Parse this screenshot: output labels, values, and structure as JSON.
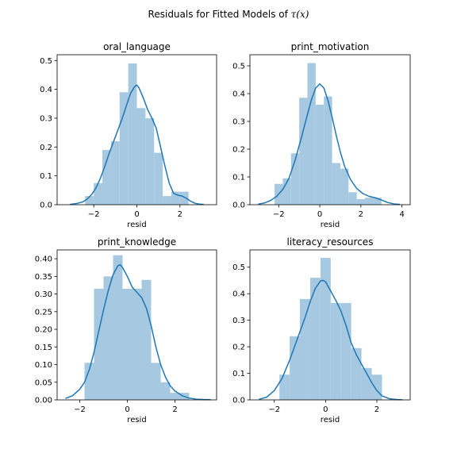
{
  "figure": {
    "title_prefix": "Residuals for Fitted Models of ",
    "title_math": "τ(x)"
  },
  "colors": {
    "bar_fill": "#a6c8e0",
    "kde_line": "#1f77b4",
    "axis": "#000000"
  },
  "chart_data": [
    {
      "type": "bar",
      "title": "oral_language",
      "xlabel": "resid",
      "ylabel": "",
      "xlim": [
        -3.7,
        3.7
      ],
      "ylim": [
        0,
        0.52
      ],
      "xticks": [
        -2,
        0,
        2
      ],
      "yticks": [
        0.0,
        0.1,
        0.2,
        0.3,
        0.4,
        0.5
      ],
      "ytick_labels": [
        "0.0",
        "0.1",
        "0.2",
        "0.3",
        "0.4",
        "0.5"
      ],
      "bin_edges": [
        -2.4,
        -2.0,
        -1.6,
        -1.2,
        -0.8,
        -0.4,
        0.0,
        0.4,
        0.8,
        1.2,
        1.6,
        2.0,
        2.4
      ],
      "values": [
        0.03,
        0.075,
        0.19,
        0.22,
        0.39,
        0.49,
        0.335,
        0.3,
        0.18,
        0.03,
        0.045,
        0.045
      ],
      "kde": {
        "x": [
          -3.1,
          -2.8,
          -2.5,
          -2.3,
          -2.1,
          -1.9,
          -1.7,
          -1.5,
          -1.3,
          -1.1,
          -0.9,
          -0.7,
          -0.5,
          -0.3,
          -0.1,
          0.0,
          0.1,
          0.3,
          0.5,
          0.7,
          0.9,
          1.1,
          1.3,
          1.5,
          1.7,
          1.9,
          2.1,
          2.3,
          2.5,
          2.7,
          2.9,
          3.1
        ],
        "y": [
          0.001,
          0.004,
          0.01,
          0.02,
          0.035,
          0.058,
          0.09,
          0.13,
          0.175,
          0.215,
          0.255,
          0.295,
          0.34,
          0.385,
          0.41,
          0.415,
          0.405,
          0.37,
          0.33,
          0.3,
          0.265,
          0.2,
          0.135,
          0.075,
          0.04,
          0.033,
          0.03,
          0.022,
          0.012,
          0.005,
          0.002,
          0.001
        ]
      }
    },
    {
      "type": "bar",
      "title": "print_motivation",
      "xlabel": "resid",
      "ylabel": "",
      "xlim": [
        -3.4,
        4.4
      ],
      "ylim": [
        0,
        0.54
      ],
      "xticks": [
        -2,
        0,
        2,
        4
      ],
      "yticks": [
        0.0,
        0.1,
        0.2,
        0.3,
        0.4,
        0.5
      ],
      "ytick_labels": [
        "0.0",
        "0.1",
        "0.2",
        "0.3",
        "0.4",
        "0.5"
      ],
      "bin_edges": [
        -2.2,
        -1.8,
        -1.4,
        -1.0,
        -0.6,
        -0.2,
        0.2,
        0.6,
        1.0,
        1.4,
        1.8,
        2.2,
        2.6,
        3.0
      ],
      "values": [
        0.075,
        0.095,
        0.185,
        0.385,
        0.51,
        0.36,
        0.39,
        0.15,
        0.13,
        0.045,
        0.02,
        0.025,
        0.025
      ],
      "kde": {
        "x": [
          -3.0,
          -2.7,
          -2.4,
          -2.1,
          -1.8,
          -1.5,
          -1.2,
          -0.9,
          -0.6,
          -0.4,
          -0.2,
          0.0,
          0.2,
          0.4,
          0.6,
          0.8,
          1.0,
          1.2,
          1.5,
          1.8,
          2.1,
          2.4,
          2.7,
          3.0,
          3.3,
          3.6,
          3.9
        ],
        "y": [
          0.002,
          0.006,
          0.015,
          0.03,
          0.055,
          0.095,
          0.16,
          0.24,
          0.325,
          0.38,
          0.42,
          0.435,
          0.42,
          0.375,
          0.315,
          0.25,
          0.19,
          0.14,
          0.09,
          0.058,
          0.04,
          0.03,
          0.025,
          0.017,
          0.008,
          0.003,
          0.001
        ]
      }
    },
    {
      "type": "bar",
      "title": "print_knowledge",
      "xlabel": "resid",
      "ylabel": "",
      "xlim": [
        -2.95,
        3.75
      ],
      "ylim": [
        0,
        0.425
      ],
      "xticks": [
        -2,
        0,
        2
      ],
      "yticks": [
        0.0,
        0.05,
        0.1,
        0.15,
        0.2,
        0.25,
        0.3,
        0.35,
        0.4
      ],
      "ytick_labels": [
        "0.00",
        "0.05",
        "0.10",
        "0.15",
        "0.20",
        "0.25",
        "0.30",
        "0.35",
        "0.40"
      ],
      "bin_edges": [
        -1.8,
        -1.4,
        -1.0,
        -0.6,
        -0.2,
        0.2,
        0.6,
        1.0,
        1.4,
        1.8,
        2.2,
        2.6
      ],
      "values": [
        0.105,
        0.315,
        0.35,
        0.41,
        0.315,
        0.315,
        0.34,
        0.105,
        0.05,
        0.02,
        0.02
      ],
      "kde": {
        "x": [
          -2.6,
          -2.3,
          -2.0,
          -1.8,
          -1.6,
          -1.4,
          -1.2,
          -1.0,
          -0.8,
          -0.6,
          -0.4,
          -0.3,
          -0.2,
          0.0,
          0.2,
          0.4,
          0.6,
          0.8,
          1.0,
          1.2,
          1.4,
          1.6,
          1.8,
          2.0,
          2.3,
          2.6,
          2.9,
          3.2,
          3.5
        ],
        "y": [
          0.004,
          0.012,
          0.03,
          0.05,
          0.085,
          0.135,
          0.195,
          0.255,
          0.31,
          0.355,
          0.38,
          0.383,
          0.375,
          0.35,
          0.32,
          0.305,
          0.29,
          0.26,
          0.21,
          0.15,
          0.1,
          0.065,
          0.04,
          0.025,
          0.012,
          0.005,
          0.002,
          0.001,
          0.0005
        ]
      }
    },
    {
      "type": "bar",
      "title": "literacy_resources",
      "xlabel": "resid",
      "ylabel": "",
      "xlim": [
        -2.95,
        3.3
      ],
      "ylim": [
        0,
        0.565
      ],
      "xticks": [
        -2,
        0,
        2
      ],
      "yticks": [
        0.0,
        0.1,
        0.2,
        0.3,
        0.4,
        0.5
      ],
      "ytick_labels": [
        "0.0",
        "0.1",
        "0.2",
        "0.3",
        "0.4",
        "0.5"
      ],
      "bin_edges": [
        -1.8,
        -1.4,
        -1.0,
        -0.6,
        -0.2,
        0.2,
        0.6,
        1.0,
        1.4,
        1.8,
        2.2
      ],
      "values": [
        0.095,
        0.24,
        0.38,
        0.46,
        0.535,
        0.365,
        0.365,
        0.195,
        0.12,
        0.095
      ],
      "kde": {
        "x": [
          -2.6,
          -2.3,
          -2.0,
          -1.7,
          -1.4,
          -1.1,
          -0.8,
          -0.6,
          -0.4,
          -0.2,
          -0.1,
          0.0,
          0.2,
          0.4,
          0.6,
          0.8,
          1.0,
          1.2,
          1.4,
          1.6,
          1.8,
          2.0,
          2.2,
          2.5,
          2.8,
          3.0
        ],
        "y": [
          0.002,
          0.01,
          0.035,
          0.08,
          0.15,
          0.23,
          0.31,
          0.37,
          0.42,
          0.448,
          0.45,
          0.445,
          0.41,
          0.375,
          0.335,
          0.28,
          0.215,
          0.17,
          0.135,
          0.1,
          0.065,
          0.035,
          0.015,
          0.004,
          0.001,
          0.0005
        ]
      }
    }
  ]
}
